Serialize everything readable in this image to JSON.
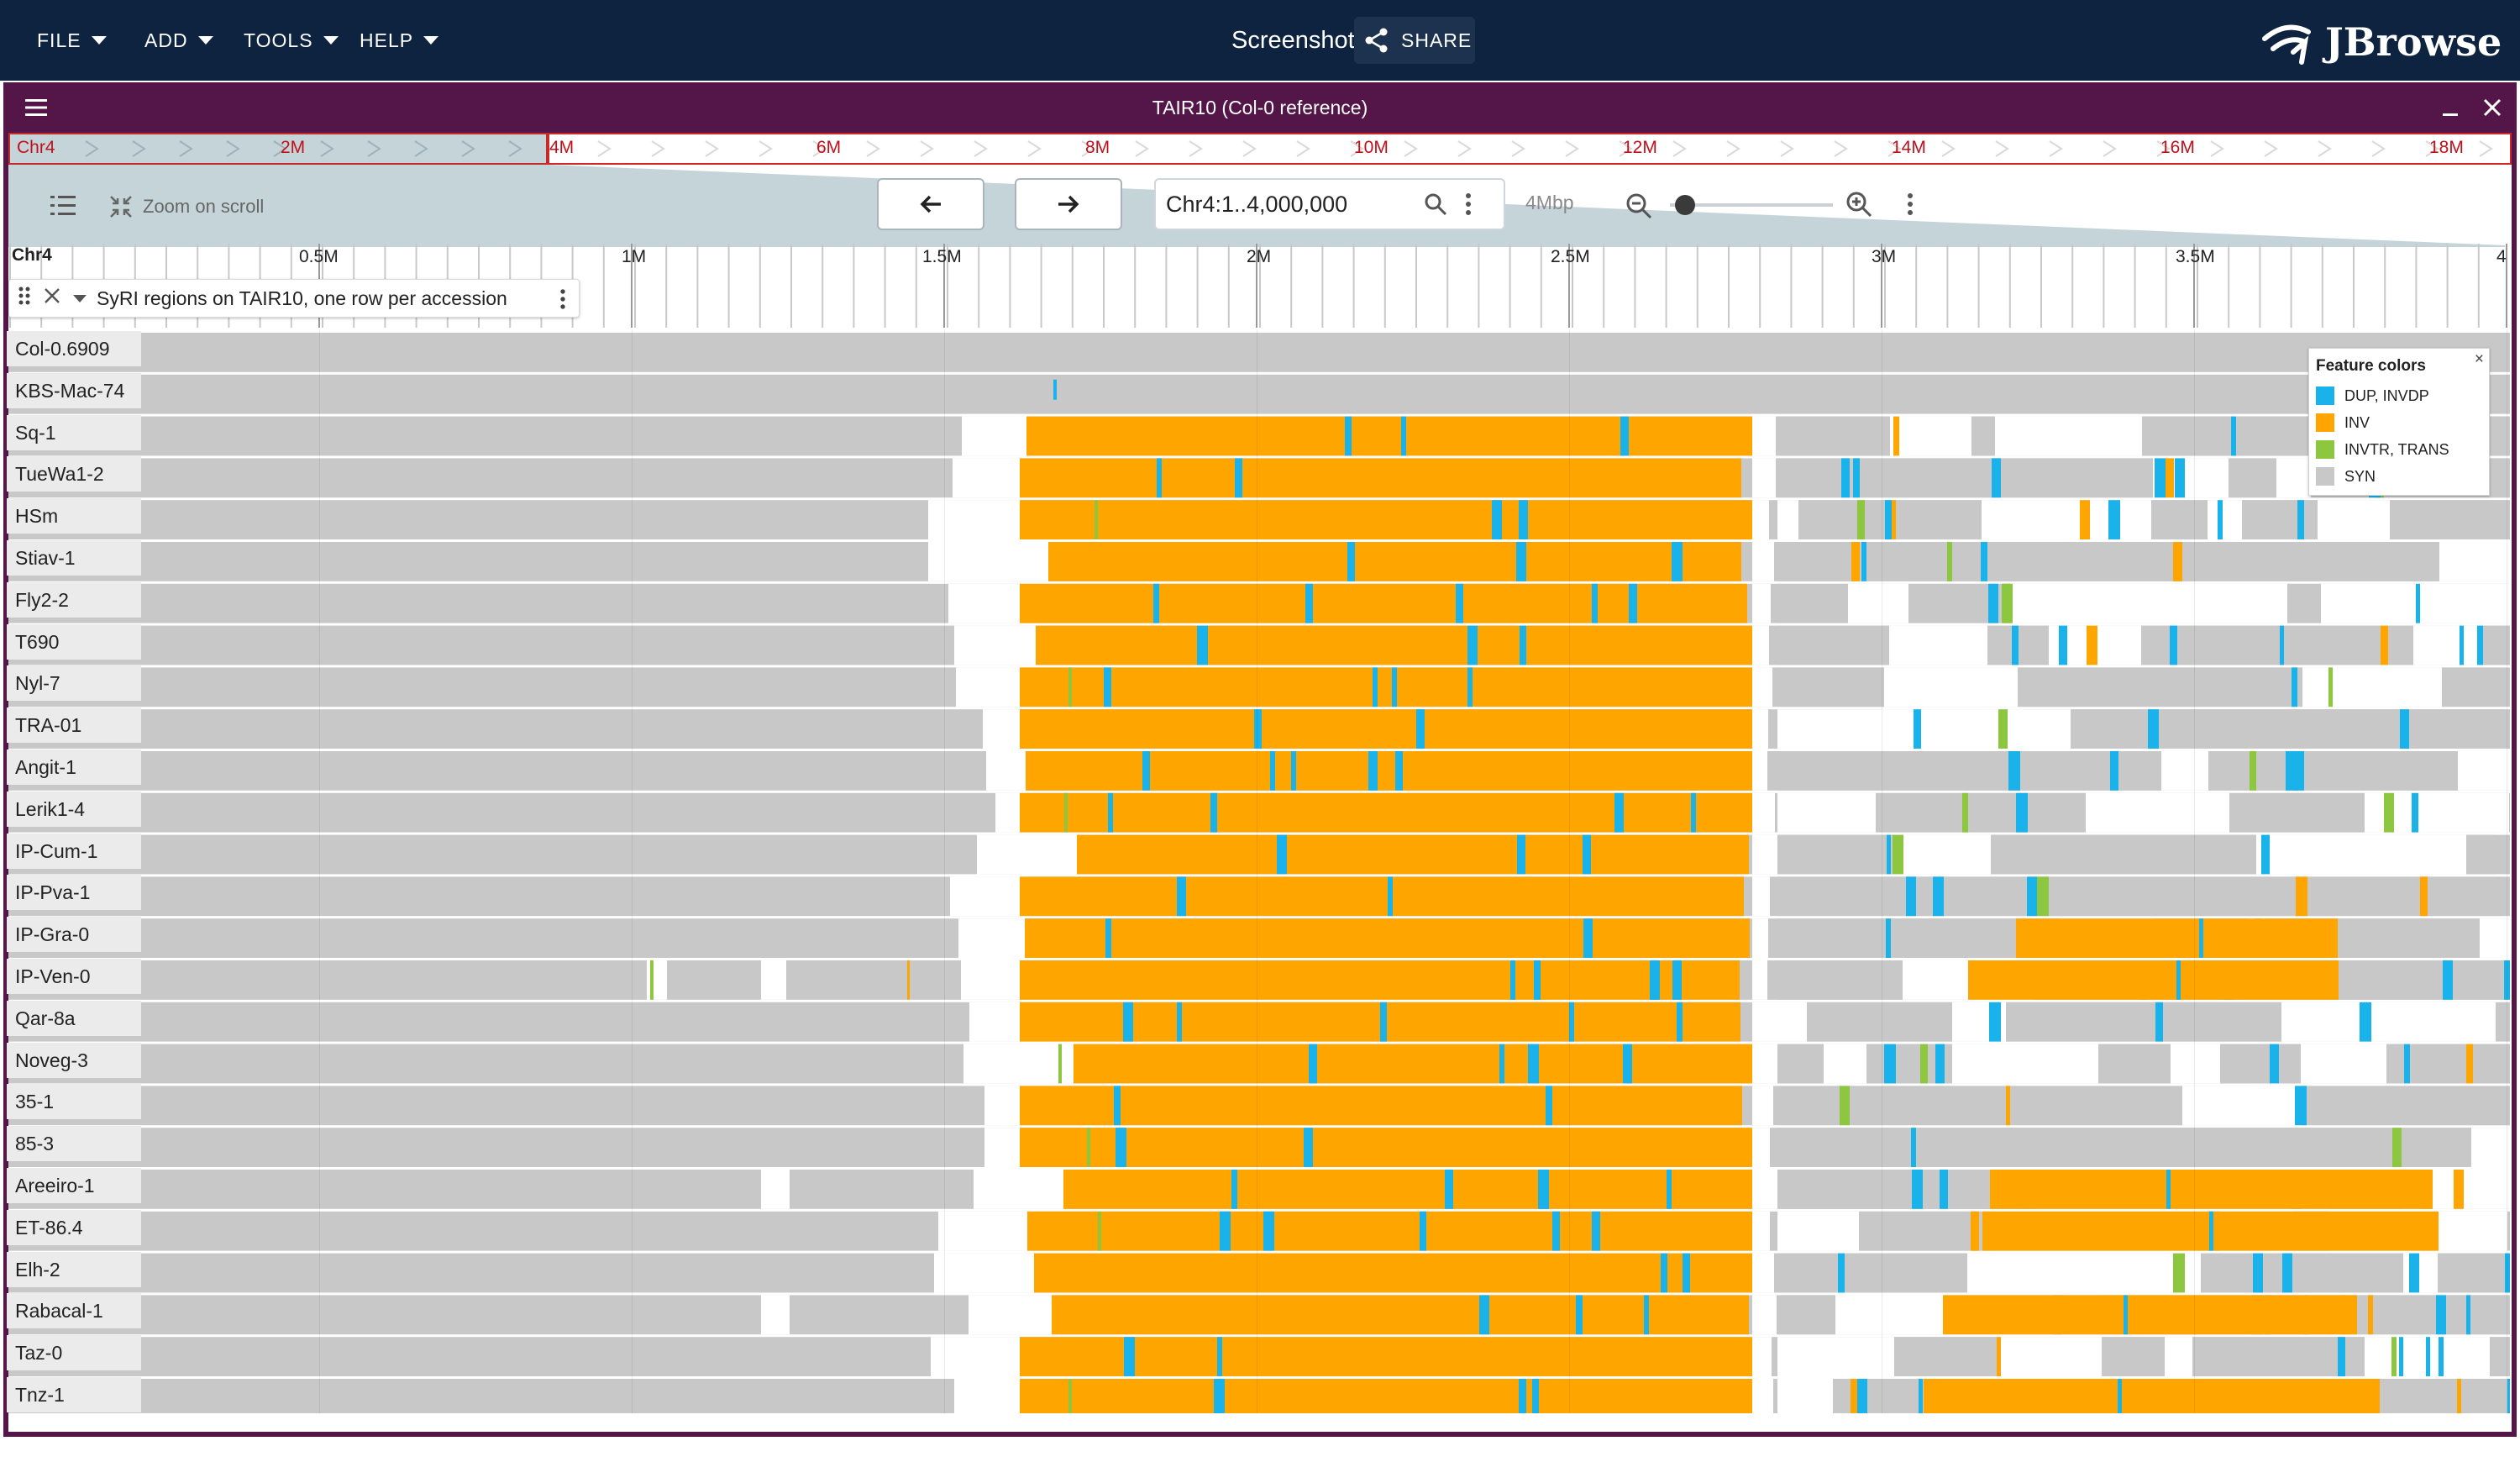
{
  "menubar": {
    "items": [
      {
        "label": "FILE"
      },
      {
        "label": "ADD"
      },
      {
        "label": "TOOLS"
      },
      {
        "label": "HELP"
      }
    ],
    "session_name": "Screenshot",
    "share_label": "SHARE",
    "logo_text": "JBrowse"
  },
  "view": {
    "title": "TAIR10 (Col-0 reference)"
  },
  "overview": {
    "refname": "Chr4",
    "labels": [
      "2M",
      "4M",
      "6M",
      "8M",
      "10M",
      "12M",
      "14M",
      "16M",
      "18M"
    ]
  },
  "controls": {
    "zoom_on_scroll_label": "Zoom on scroll",
    "location": "Chr4:1..4,000,000",
    "zoom_level_label": "4Mbp"
  },
  "ruler": {
    "refname": "Chr4",
    "ticks": [
      "0.5M",
      "1M",
      "1.5M",
      "2M",
      "2.5M",
      "3M",
      "3.5M",
      "4"
    ]
  },
  "track": {
    "name": "SyRI regions on TAIR10, one row per accession",
    "rows": [
      "Col-0.6909",
      "KBS-Mac-74",
      "Sq-1",
      "TueWa1-2",
      "HSm",
      "Stiav-1",
      "Fly2-2",
      "T690",
      "Nyl-7",
      "TRA-01",
      "Angit-1",
      "Lerik1-4",
      "IP-Cum-1",
      "IP-Pva-1",
      "IP-Gra-0",
      "IP-Ven-0",
      "Qar-8a",
      "Noveg-3",
      "35-1",
      "85-3",
      "Areeiro-1",
      "ET-86.4",
      "Elh-2",
      "Rabacal-1",
      "Taz-0",
      "Tnz-1"
    ]
  },
  "legend": {
    "title": "Feature colors",
    "items": [
      {
        "label": "DUP, INVDP",
        "color": "#1ab2ea"
      },
      {
        "label": "INV",
        "color": "#ffa500"
      },
      {
        "label": "INVTR, TRANS",
        "color": "#8cc73f"
      },
      {
        "label": "SYN",
        "color": "#c8c8c8"
      }
    ]
  }
}
